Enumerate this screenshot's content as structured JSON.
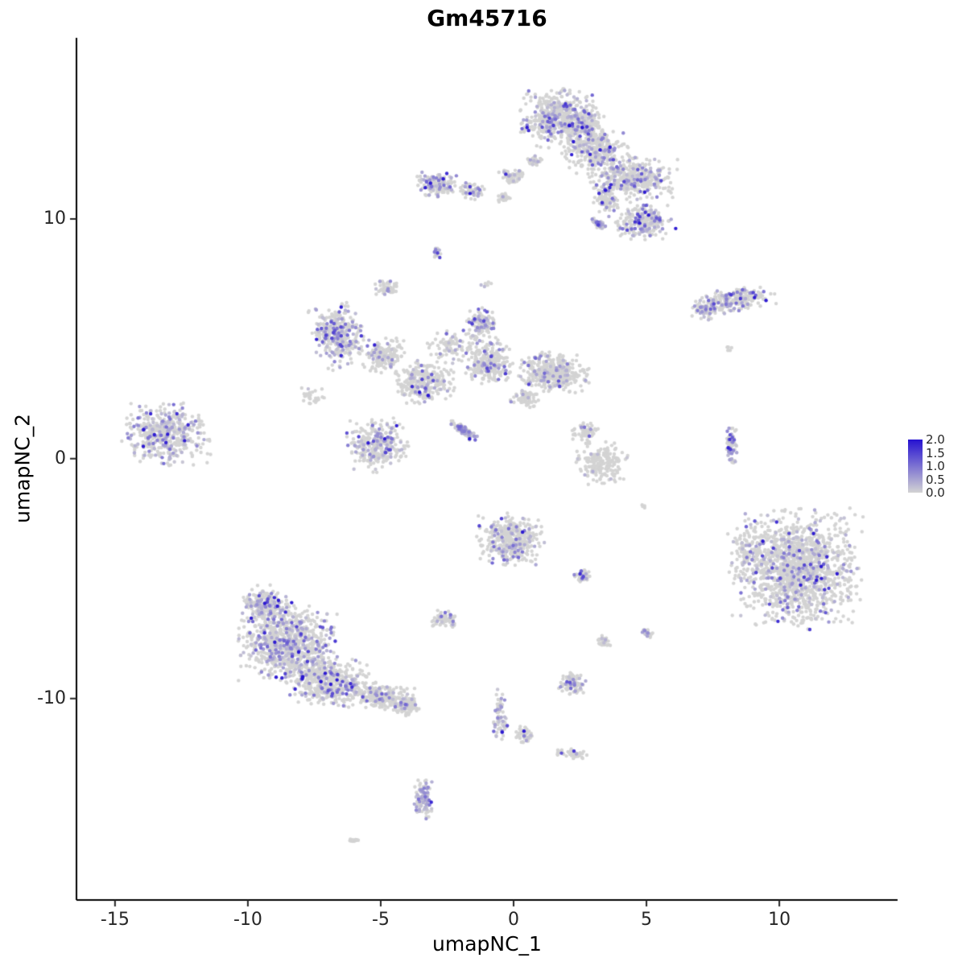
{
  "chart_data": {
    "type": "scatter",
    "title": "Gm45716",
    "xlabel": "umapNC_1",
    "ylabel": "umapNC_2",
    "x_range": [
      -16.45,
      14.45
    ],
    "y_range": [
      -18.4,
      17.55
    ],
    "x_ticks": [
      -15,
      -10,
      -5,
      0,
      5,
      10
    ],
    "y_ticks": [
      -10,
      0,
      10
    ],
    "grid": false,
    "legend": {
      "position": "right",
      "labels": [
        "2.0",
        "1.5",
        "1.0",
        "0.5",
        "0.0"
      ],
      "vmin": 0.0,
      "vmax": 2.0
    },
    "point_style": {
      "radius": 2.2,
      "base_color": "#D3D3D3",
      "high_color": "#2612D1"
    },
    "clusters": [
      {
        "cx": 1.7,
        "cy": 14.2,
        "rx": 1.5,
        "ry": 1.25,
        "n": 520,
        "expr": 0.22
      },
      {
        "cx": 3.1,
        "cy": 12.9,
        "rx": 1.3,
        "ry": 1.0,
        "n": 330,
        "expr": 0.18
      },
      {
        "cx": 2.6,
        "cy": 13.9,
        "rx": 0.8,
        "ry": 0.7,
        "n": 150,
        "expr": 0.2
      },
      {
        "cx": 4.5,
        "cy": 11.7,
        "rx": 1.7,
        "ry": 0.9,
        "n": 420,
        "expr": 0.22
      },
      {
        "cx": 4.9,
        "cy": 9.9,
        "rx": 1.1,
        "ry": 0.8,
        "n": 260,
        "expr": 0.25
      },
      {
        "cx": 3.5,
        "cy": 10.8,
        "rx": 0.5,
        "ry": 0.7,
        "n": 90,
        "expr": 0.15
      },
      {
        "cx": 3.2,
        "cy": 9.8,
        "rx": 0.35,
        "ry": 0.18,
        "n": 40,
        "expr": 0.6,
        "rot": -30
      },
      {
        "cx": -2.9,
        "cy": 11.4,
        "rx": 0.75,
        "ry": 0.55,
        "n": 150,
        "expr": 0.35
      },
      {
        "cx": -1.6,
        "cy": 11.2,
        "rx": 0.5,
        "ry": 0.4,
        "n": 70,
        "expr": 0.2
      },
      {
        "cx": -0.1,
        "cy": 11.8,
        "rx": 0.55,
        "ry": 0.35,
        "n": 65,
        "expr": 0.15
      },
      {
        "cx": 0.8,
        "cy": 12.4,
        "rx": 0.3,
        "ry": 0.25,
        "n": 30,
        "expr": 0.1
      },
      {
        "cx": -0.4,
        "cy": 10.9,
        "rx": 0.3,
        "ry": 0.25,
        "n": 25,
        "expr": 0.1
      },
      {
        "cx": -2.9,
        "cy": 8.6,
        "rx": 0.18,
        "ry": 0.32,
        "n": 18,
        "expr": 0.45
      },
      {
        "cx": -4.8,
        "cy": 7.1,
        "rx": 0.5,
        "ry": 0.35,
        "n": 60,
        "expr": 0.05
      },
      {
        "cx": -1.0,
        "cy": 7.3,
        "rx": 0.3,
        "ry": 0.2,
        "n": 6,
        "expr": 0.2
      },
      {
        "cx": 8.3,
        "cy": 6.6,
        "rx": 1.6,
        "ry": 0.5,
        "n": 250,
        "expr": 0.28,
        "rot": 8
      },
      {
        "cx": 7.2,
        "cy": 6.2,
        "rx": 0.5,
        "ry": 0.45,
        "n": 60,
        "expr": 0.2
      },
      {
        "cx": 8.1,
        "cy": 4.6,
        "rx": 0.15,
        "ry": 0.12,
        "n": 5,
        "expr": 0.0
      },
      {
        "cx": -6.6,
        "cy": 5.2,
        "rx": 1.1,
        "ry": 1.4,
        "n": 360,
        "expr": 0.28,
        "rot": 20
      },
      {
        "cx": -7.6,
        "cy": 2.6,
        "rx": 0.5,
        "ry": 0.5,
        "n": 30,
        "expr": 0.15
      },
      {
        "cx": -1.2,
        "cy": 5.6,
        "rx": 0.6,
        "ry": 0.7,
        "n": 120,
        "expr": 0.25
      },
      {
        "cx": -0.9,
        "cy": 4.0,
        "rx": 0.95,
        "ry": 0.95,
        "n": 260,
        "expr": 0.18
      },
      {
        "cx": 1.5,
        "cy": 3.6,
        "rx": 1.4,
        "ry": 0.85,
        "n": 430,
        "expr": 0.1
      },
      {
        "cx": -3.4,
        "cy": 3.2,
        "rx": 1.2,
        "ry": 0.9,
        "n": 300,
        "expr": 0.15
      },
      {
        "cx": -4.9,
        "cy": 4.3,
        "rx": 0.85,
        "ry": 0.75,
        "n": 170,
        "expr": 0.15
      },
      {
        "cx": -2.3,
        "cy": 4.7,
        "rx": 1.0,
        "ry": 0.8,
        "n": 90,
        "expr": 0.1
      },
      {
        "cx": 0.4,
        "cy": 2.5,
        "rx": 0.55,
        "ry": 0.4,
        "n": 70,
        "expr": 0.1
      },
      {
        "cx": -13.1,
        "cy": 1.0,
        "rx": 1.7,
        "ry": 1.35,
        "n": 470,
        "expr": 0.28
      },
      {
        "cx": -5.1,
        "cy": 0.6,
        "rx": 1.2,
        "ry": 1.2,
        "n": 320,
        "expr": 0.22
      },
      {
        "cx": -1.9,
        "cy": 1.2,
        "rx": 0.75,
        "ry": 0.2,
        "n": 90,
        "expr": 0.5,
        "rot": -38
      },
      {
        "cx": 2.7,
        "cy": 1.1,
        "rx": 0.55,
        "ry": 0.5,
        "n": 70,
        "expr": 0.05
      },
      {
        "cx": 3.3,
        "cy": -0.2,
        "rx": 1.0,
        "ry": 0.95,
        "n": 190,
        "expr": 0.05
      },
      {
        "cx": 8.2,
        "cy": 0.5,
        "rx": 0.22,
        "ry": 0.95,
        "n": 70,
        "expr": 0.45
      },
      {
        "cx": 10.7,
        "cy": -4.6,
        "rx": 2.5,
        "ry": 2.55,
        "n": 1400,
        "expr": 0.16
      },
      {
        "cx": 8.8,
        "cy": -3.9,
        "rx": 0.8,
        "ry": 1.1,
        "n": 90,
        "expr": 0.2
      },
      {
        "cx": -0.1,
        "cy": -3.4,
        "rx": 1.3,
        "ry": 1.15,
        "n": 380,
        "expr": 0.22
      },
      {
        "cx": 2.6,
        "cy": -4.9,
        "rx": 0.4,
        "ry": 0.3,
        "n": 45,
        "expr": 0.3
      },
      {
        "cx": -2.6,
        "cy": -6.7,
        "rx": 0.5,
        "ry": 0.4,
        "n": 70,
        "expr": 0.2
      },
      {
        "cx": -9.3,
        "cy": -6.1,
        "rx": 0.95,
        "ry": 0.85,
        "n": 220,
        "expr": 0.3
      },
      {
        "cx": -8.5,
        "cy": -7.7,
        "rx": 1.9,
        "ry": 1.6,
        "n": 880,
        "expr": 0.22
      },
      {
        "cx": -7.0,
        "cy": -9.3,
        "rx": 1.6,
        "ry": 1.1,
        "n": 480,
        "expr": 0.18
      },
      {
        "cx": -5.0,
        "cy": -9.9,
        "rx": 1.3,
        "ry": 0.6,
        "n": 260,
        "expr": 0.1,
        "rot": -12
      },
      {
        "cx": -4.0,
        "cy": -10.3,
        "rx": 0.5,
        "ry": 0.45,
        "n": 90,
        "expr": 0.08
      },
      {
        "cx": 3.4,
        "cy": -7.6,
        "rx": 0.3,
        "ry": 0.25,
        "n": 28,
        "expr": 0.1
      },
      {
        "cx": 5.0,
        "cy": -7.3,
        "rx": 0.28,
        "ry": 0.25,
        "n": 24,
        "expr": 0.35
      },
      {
        "cx": 2.2,
        "cy": -9.4,
        "rx": 0.55,
        "ry": 0.55,
        "n": 110,
        "expr": 0.22
      },
      {
        "cx": -0.5,
        "cy": -10.7,
        "rx": 0.28,
        "ry": 1.15,
        "n": 70,
        "expr": 0.3
      },
      {
        "cx": 0.4,
        "cy": -11.5,
        "rx": 0.4,
        "ry": 0.35,
        "n": 50,
        "expr": 0.2
      },
      {
        "cx": 2.2,
        "cy": -12.3,
        "rx": 0.7,
        "ry": 0.22,
        "n": 55,
        "expr": 0.2,
        "rot": -10
      },
      {
        "cx": -3.4,
        "cy": -14.2,
        "rx": 0.35,
        "ry": 0.95,
        "n": 110,
        "expr": 0.5
      },
      {
        "cx": -6.1,
        "cy": -15.9,
        "rx": 0.28,
        "ry": 0.12,
        "n": 12,
        "expr": 0.0
      },
      {
        "cx": 4.9,
        "cy": -2.0,
        "rx": 0.15,
        "ry": 0.15,
        "n": 4,
        "expr": 0.0
      }
    ],
    "special_points": [
      {
        "x": 6.1,
        "y": 9.6,
        "v": 2.0
      },
      {
        "x": 9.5,
        "y": 6.6,
        "v": 2.0
      }
    ]
  }
}
